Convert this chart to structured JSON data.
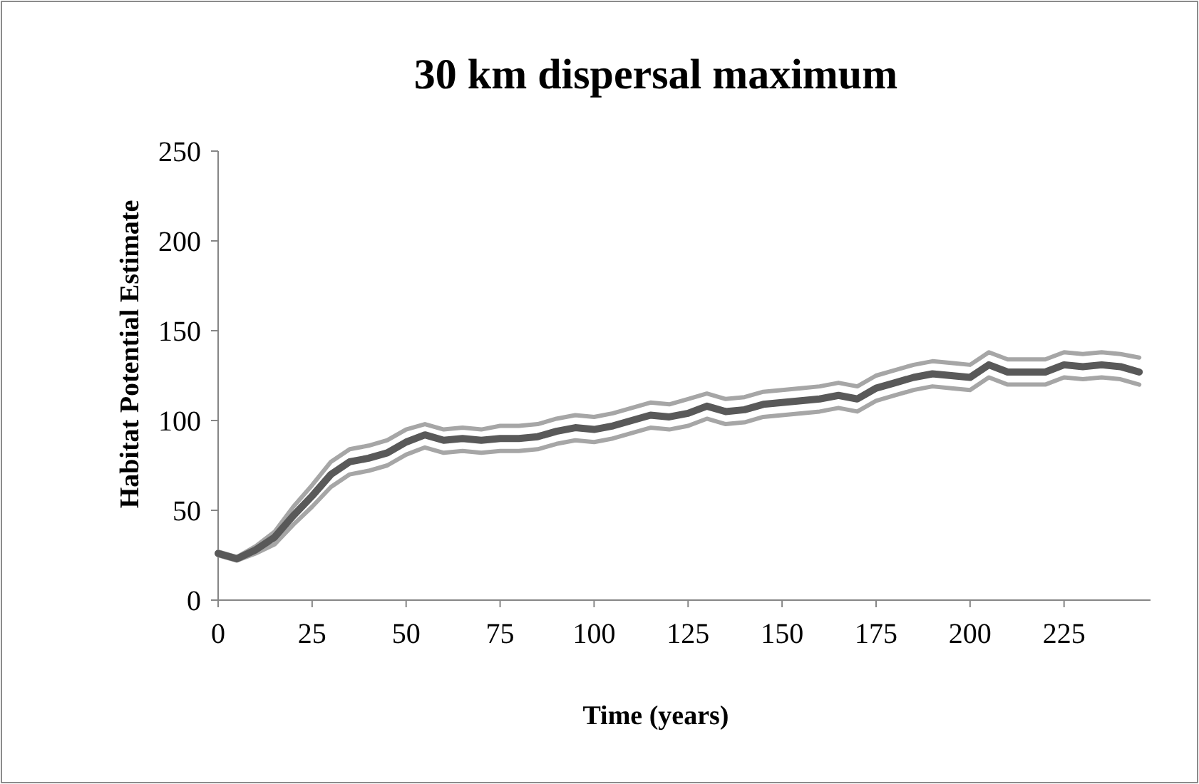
{
  "chart_data": {
    "type": "line",
    "title": "30 km dispersal maximum",
    "xlabel": "Time (years)",
    "ylabel": "Habitat Potential Estimate",
    "x": [
      0,
      5,
      10,
      15,
      20,
      25,
      30,
      35,
      40,
      45,
      50,
      55,
      60,
      65,
      70,
      75,
      80,
      85,
      90,
      95,
      100,
      105,
      110,
      115,
      120,
      125,
      130,
      135,
      140,
      145,
      150,
      155,
      160,
      165,
      170,
      175,
      180,
      185,
      190,
      195,
      200,
      205,
      210,
      215,
      220,
      225,
      230,
      235,
      240,
      245
    ],
    "xlim": [
      0,
      248
    ],
    "xticks": [
      0,
      25,
      50,
      75,
      100,
      125,
      150,
      175,
      200,
      225
    ],
    "ylim": [
      0,
      250
    ],
    "yticks": [
      0,
      50,
      100,
      150,
      200,
      250
    ],
    "grid": false,
    "line_style": "solid",
    "series": [
      {
        "color": "#a6a6a6",
        "values": [
          27,
          24,
          30,
          38,
          52,
          64,
          77,
          84,
          86,
          89,
          95,
          98,
          95,
          96,
          95,
          97,
          97,
          98,
          101,
          103,
          102,
          104,
          107,
          110,
          109,
          112,
          115,
          112,
          113,
          116,
          117,
          118,
          119,
          121,
          119,
          125,
          128,
          131,
          133,
          132,
          131,
          138,
          134,
          134,
          134,
          138,
          137,
          138,
          137,
          135
        ]
      },
      {
        "color": "#a6a6a6",
        "values": [
          25,
          22,
          26,
          31,
          42,
          52,
          63,
          70,
          72,
          75,
          81,
          85,
          82,
          83,
          82,
          83,
          83,
          84,
          87,
          89,
          88,
          90,
          93,
          96,
          95,
          97,
          101,
          98,
          99,
          102,
          103,
          104,
          105,
          107,
          105,
          111,
          114,
          117,
          119,
          118,
          117,
          124,
          120,
          120,
          120,
          124,
          123,
          124,
          123,
          120
        ]
      },
      {
        "color": "#595959",
        "values": [
          26,
          23,
          28,
          35,
          47,
          58,
          70,
          77,
          79,
          82,
          88,
          92,
          89,
          90,
          89,
          90,
          90,
          91,
          94,
          96,
          95,
          97,
          100,
          103,
          102,
          104,
          108,
          105,
          106,
          109,
          110,
          111,
          112,
          114,
          112,
          118,
          121,
          124,
          126,
          125,
          124,
          131,
          127,
          127,
          127,
          131,
          130,
          131,
          130,
          127
        ]
      }
    ]
  }
}
